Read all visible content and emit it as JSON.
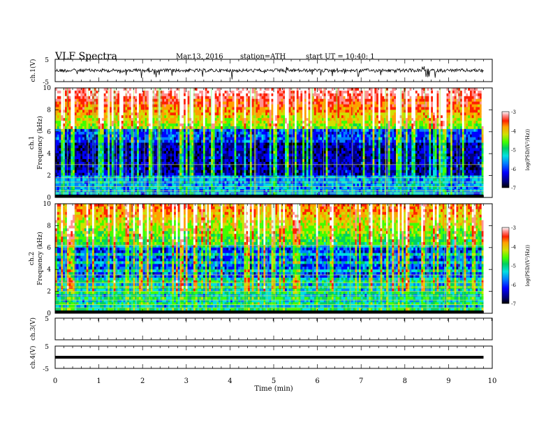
{
  "header": {
    "title": "VLF  Spectra",
    "date": "Mar.13, 2016",
    "station": "station=ATH",
    "start": "start  UT  =    10:40: 1"
  },
  "chart_data": [
    {
      "type": "line",
      "panel": "ch1-waveform",
      "ylabel": "ch.1(V)",
      "ylim": [
        -5,
        5
      ],
      "yticks": [
        "5",
        "-5"
      ],
      "xlim": [
        0,
        10
      ],
      "description_values": "noisy waveform centred near 0 V"
    },
    {
      "type": "heatmap",
      "panel": "ch1-spectrogram",
      "ylabel": [
        "ch.1",
        "Frequency  (kHz)"
      ],
      "ylim": [
        0,
        10
      ],
      "yticks": [
        "0",
        "2",
        "4",
        "6",
        "8",
        "10"
      ],
      "xlim": [
        0,
        10
      ],
      "colorbar": {
        "label": "log(PSD/(V²/Hz))",
        "ticks": [
          "-3",
          "-4",
          "-5",
          "-6",
          "-7"
        ],
        "range": [
          -7,
          -3
        ]
      }
    },
    {
      "type": "heatmap",
      "panel": "ch2-spectrogram",
      "ylabel": [
        "ch.2",
        "Frequency  (kHz)"
      ],
      "ylim": [
        0,
        10
      ],
      "yticks": [
        "0",
        "2",
        "4",
        "6",
        "8",
        "10"
      ],
      "xlim": [
        0,
        10
      ],
      "colorbar": {
        "label": "log(PSD/(V²/Hz))",
        "ticks": [
          "-3",
          "-4",
          "-5",
          "-6",
          "-7"
        ],
        "range": [
          -7,
          -3
        ]
      }
    },
    {
      "type": "line",
      "panel": "ch3-waveform",
      "ylabel": "ch.3(V)",
      "ylim": [
        -5,
        5
      ],
      "yticks": [
        "5"
      ],
      "xlim": [
        0,
        10
      ]
    },
    {
      "type": "line",
      "panel": "ch4-waveform",
      "ylabel": "ch.4(V)",
      "ylim": [
        -5,
        5
      ],
      "yticks": [
        "5",
        "-5"
      ],
      "xlim": [
        0,
        10
      ],
      "series": [
        {
          "x": [
            0,
            9.8
          ],
          "y": [
            0,
            0
          ]
        }
      ]
    }
  ],
  "xaxis": {
    "label": "Time  (min)",
    "ticks": [
      "0",
      "1",
      "2",
      "3",
      "4",
      "5",
      "6",
      "7",
      "8",
      "9",
      "10"
    ]
  },
  "colors": {
    "scale": [
      "#000000",
      "#00007a",
      "#0000ff",
      "#0080ff",
      "#00e0e0",
      "#00d060",
      "#40ff00",
      "#d0e000",
      "#ffa000",
      "#ff2000",
      "#ff9090",
      "#ffffff"
    ]
  }
}
